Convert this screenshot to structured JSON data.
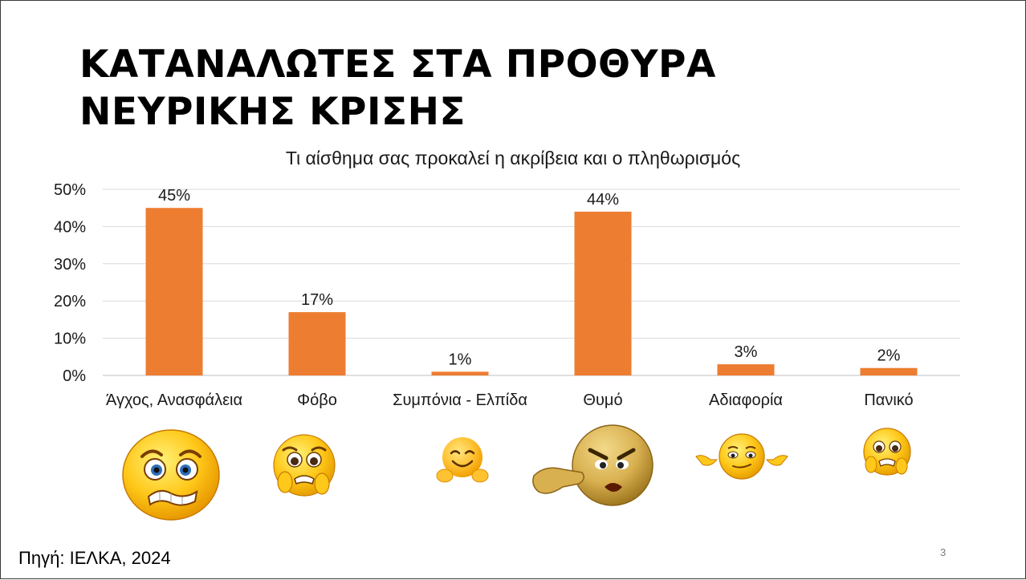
{
  "slide": {
    "title_line1": "ΚΑΤΑΝΑΛΩΤΕΣ ΣΤΑ ΠΡΟΘΥΡΑ",
    "title_line2": "ΝΕΥΡΙΚΗΣ ΚΡΙΣΗΣ",
    "source": "Πηγή: ΙΕΛΚΑ, 2024",
    "page_number": "3"
  },
  "chart_data": {
    "type": "bar",
    "title": "Τι αίσθημα σας προκαλεί η ακρίβεια και ο πληθωρισμός",
    "categories": [
      "Άγχος, Ανασφάλεια",
      "Φόβο",
      "Συμπόνια - Ελπίδα",
      "Θυμό",
      "Αδιαφορία",
      "Πανικό"
    ],
    "values": [
      45,
      17,
      1,
      44,
      3,
      2
    ],
    "data_labels": [
      "45%",
      "17%",
      "1%",
      "44%",
      "3%",
      "2%"
    ],
    "ylim": [
      0,
      50
    ],
    "yticks": [
      0,
      10,
      20,
      30,
      40,
      50
    ],
    "ytick_labels": [
      "0%",
      "10%",
      "20%",
      "30%",
      "40%",
      "50%"
    ],
    "grid": true,
    "bar_color": "#ED7D31",
    "emojis": [
      "anxious-face-icon",
      "fearful-face-icon",
      "smiling-hug-face-icon",
      "angry-pointing-face-icon",
      "shrugging-face-icon",
      "panicked-face-icon"
    ]
  }
}
